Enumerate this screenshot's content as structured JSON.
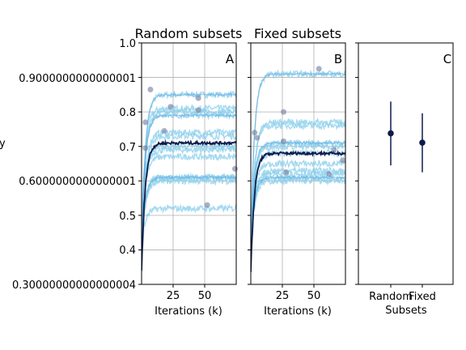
{
  "figure": {
    "panels": [
      {
        "title": "Random subsets",
        "letter": "A",
        "xlabel": "Iterations (k)"
      },
      {
        "title": "Fixed subsets",
        "letter": "B",
        "xlabel": "Iterations (k)"
      },
      {
        "title": "",
        "letter": "C",
        "xlabel": "Subsets"
      }
    ],
    "y_tick_labels": [
      "0.30000000000000004",
      "0.4",
      "0.5",
      "0.6000000000000001",
      "0.7",
      "0.8",
      "0.9000000000000001",
      "1.0"
    ],
    "ylabel_fragment": "y",
    "colors": {
      "run": "#87ceeb",
      "run_mean": "#5aa9df",
      "mean_line": "#0d1b4a",
      "marker": "#6f7c9e",
      "grid": "#b0b0b0"
    }
  },
  "chart_data": [
    {
      "type": "line",
      "title": "Random subsets",
      "panel_letter": "A",
      "xlabel": "Iterations (k)",
      "ylabel": "",
      "xlim": [
        0,
        75
      ],
      "ylim": [
        0.3,
        1.0
      ],
      "x_ticks": [
        25,
        50
      ],
      "y_ticks": [
        0.3,
        0.4,
        0.5,
        0.6,
        0.7,
        0.8,
        0.9,
        1.0
      ],
      "grid": true,
      "series_plateaus": [
        0.85,
        0.81,
        0.8,
        0.79,
        0.74,
        0.73,
        0.7,
        0.69,
        0.67,
        0.61,
        0.61,
        0.6,
        0.52
      ],
      "mean_plateau": 0.71,
      "best_points": [
        {
          "x": 3,
          "y": 0.77
        },
        {
          "x": 7,
          "y": 0.865
        },
        {
          "x": 18,
          "y": 0.745
        },
        {
          "x": 23,
          "y": 0.815
        },
        {
          "x": 45,
          "y": 0.84
        },
        {
          "x": 45,
          "y": 0.805
        },
        {
          "x": 52,
          "y": 0.53
        },
        {
          "x": 74,
          "y": 0.635
        },
        {
          "x": 3,
          "y": 0.695
        }
      ]
    },
    {
      "type": "line",
      "title": "Fixed subsets",
      "panel_letter": "B",
      "xlabel": "Iterations (k)",
      "ylabel": "",
      "xlim": [
        0,
        75
      ],
      "ylim": [
        0.3,
        1.0
      ],
      "x_ticks": [
        25,
        50
      ],
      "y_ticks": [
        0.3,
        0.4,
        0.5,
        0.6,
        0.7,
        0.8,
        0.9,
        1.0
      ],
      "grid": true,
      "series_plateaus": [
        0.91,
        0.77,
        0.76,
        0.71,
        0.7,
        0.68,
        0.65,
        0.63,
        0.62,
        0.61,
        0.6
      ],
      "mean_plateau": 0.68,
      "best_points": [
        {
          "x": 3,
          "y": 0.74
        },
        {
          "x": 5,
          "y": 0.725
        },
        {
          "x": 26,
          "y": 0.8
        },
        {
          "x": 26,
          "y": 0.715
        },
        {
          "x": 28,
          "y": 0.625
        },
        {
          "x": 54,
          "y": 0.925
        },
        {
          "x": 62,
          "y": 0.62
        },
        {
          "x": 66,
          "y": 0.69
        },
        {
          "x": 73,
          "y": 0.66
        }
      ]
    },
    {
      "type": "scatter",
      "title": "",
      "panel_letter": "C",
      "xlabel": "Subsets",
      "categories": [
        "Random",
        "Fixed"
      ],
      "ylim": [
        0.3,
        1.0
      ],
      "points": [
        {
          "category": "Random",
          "mean": 0.738,
          "low": 0.645,
          "high": 0.83
        },
        {
          "category": "Fixed",
          "mean": 0.711,
          "low": 0.625,
          "high": 0.796
        }
      ]
    }
  ]
}
